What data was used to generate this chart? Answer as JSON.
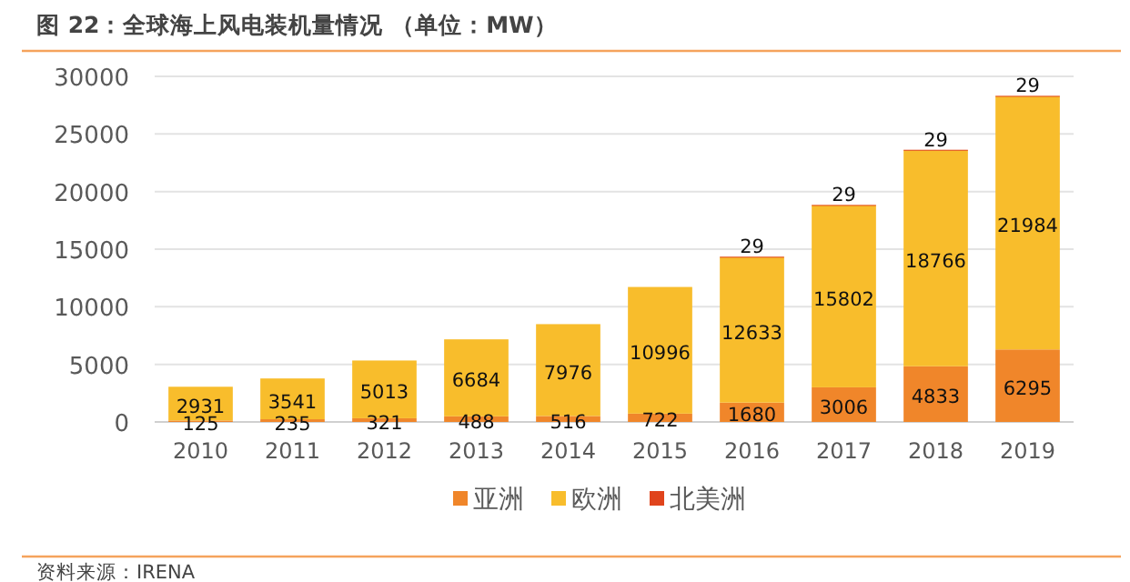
{
  "chart_data": {
    "type": "bar",
    "stacked": true,
    "title": "图 22：全球海上风电装机量情况 （单位：MW）",
    "categories": [
      "2010",
      "2011",
      "2012",
      "2013",
      "2014",
      "2015",
      "2016",
      "2017",
      "2018",
      "2019"
    ],
    "series": [
      {
        "name": "亚洲",
        "color": "#f0862a",
        "values": [
          125,
          235,
          321,
          488,
          516,
          722,
          1680,
          3006,
          4833,
          6295
        ]
      },
      {
        "name": "欧洲",
        "color": "#f8bd2c",
        "values": [
          2931,
          3541,
          5013,
          6684,
          7976,
          10996,
          12633,
          15802,
          18766,
          21984
        ]
      },
      {
        "name": "北美洲",
        "color": "#e0441c",
        "values": [
          null,
          null,
          null,
          null,
          null,
          null,
          29,
          29,
          29,
          29
        ]
      }
    ],
    "ylim": [
      0,
      30000
    ],
    "yticks": [
      0,
      5000,
      10000,
      15000,
      20000,
      25000,
      30000
    ],
    "grid": "y",
    "legend": "bottom",
    "data_labels": true,
    "annotations": [
      "资料来源：IRENA"
    ]
  }
}
